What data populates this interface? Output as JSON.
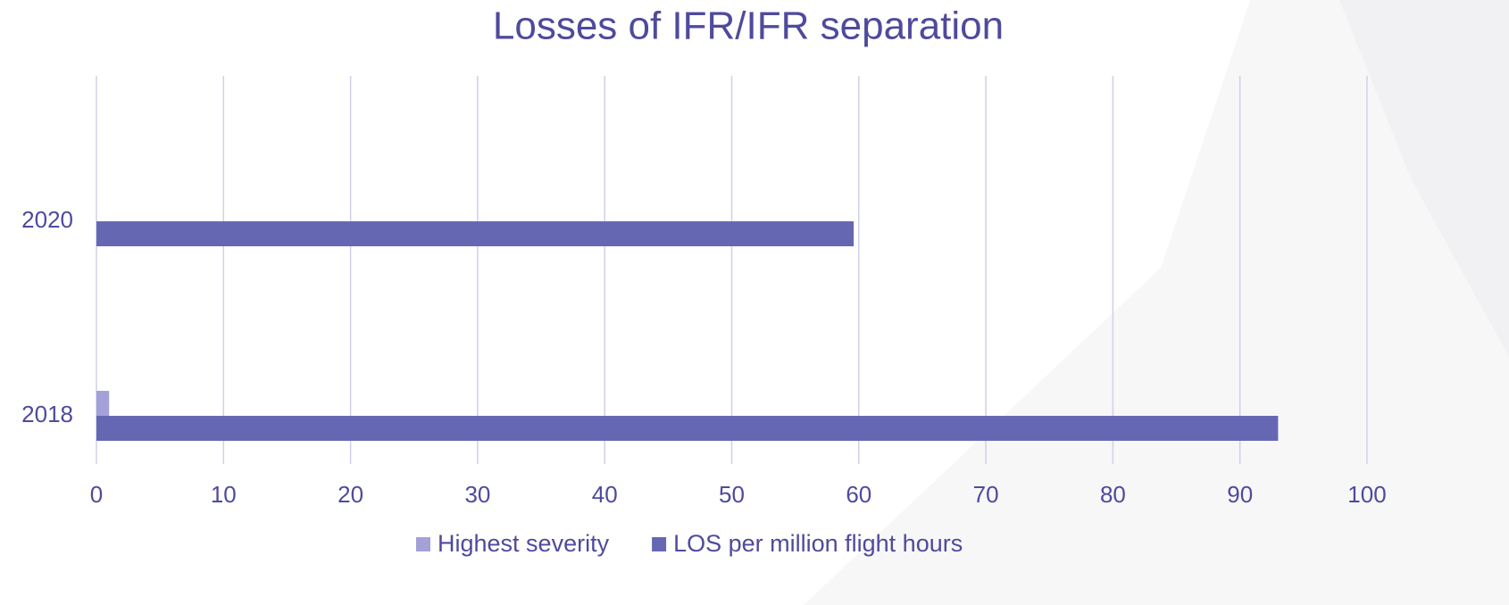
{
  "chart_data": {
    "type": "hbar",
    "title": "Losses of IFR/IFR separation",
    "categories": [
      "2018",
      "2020"
    ],
    "series": [
      {
        "name": "Highest severity",
        "color": "#a3a1d8",
        "values": [
          1,
          0
        ]
      },
      {
        "name": "LOS per million flight hours",
        "color": "#6667b3",
        "values": [
          93,
          59.6
        ]
      }
    ],
    "xlim": [
      0,
      100
    ],
    "xticks": [
      0,
      10,
      20,
      30,
      40,
      50,
      60,
      70,
      80,
      90,
      100
    ],
    "grid": true,
    "legend": "bottom"
  }
}
